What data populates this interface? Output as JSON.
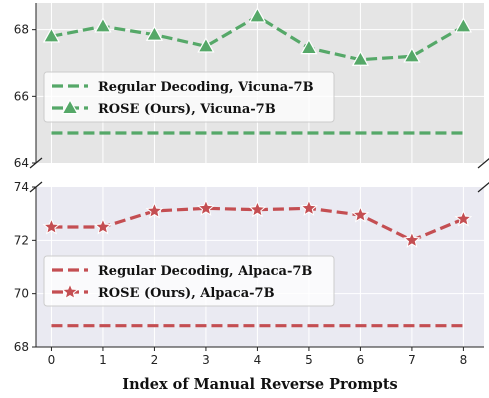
{
  "chart_data": {
    "type": "line",
    "xlabel": "Index of Manual Reverse Prompts",
    "x": [
      0,
      1,
      2,
      3,
      4,
      5,
      6,
      7,
      8
    ],
    "xlim": [
      -0.3,
      8.4
    ],
    "x_ticks": [
      "0",
      "1",
      "2",
      "3",
      "4",
      "5",
      "6",
      "7",
      "8"
    ],
    "broken_y_axis": true,
    "panels": [
      {
        "id": "top",
        "background": "#e5e5e5",
        "ylim": [
          64,
          68.8
        ],
        "y_ticks": [
          "64",
          "66",
          "68"
        ],
        "legend_location": "center-left",
        "series": [
          {
            "name": "Regular Decoding, Vicuna-7B",
            "style": "dashed",
            "marker": "none",
            "color": "#55a868",
            "values": [
              64.9,
              64.9,
              64.9,
              64.9,
              64.9,
              64.9,
              64.9,
              64.9,
              64.9
            ]
          },
          {
            "name": "ROSE (Ours), Vicuna-7B",
            "style": "dashed",
            "marker": "triangle",
            "color": "#55a868",
            "values": [
              67.8,
              68.1,
              67.85,
              67.5,
              68.4,
              67.45,
              67.1,
              67.2,
              68.1
            ]
          }
        ]
      },
      {
        "id": "bottom",
        "background": "#eaeaf2",
        "ylim": [
          68,
          74
        ],
        "y_ticks": [
          "68",
          "70",
          "72",
          "74"
        ],
        "legend_location": "center-left",
        "series": [
          {
            "name": "Regular Decoding, Alpaca-7B",
            "style": "dashed",
            "marker": "none",
            "color": "#c44e52",
            "values": [
              68.8,
              68.8,
              68.8,
              68.8,
              68.8,
              68.8,
              68.8,
              68.8,
              68.8
            ]
          },
          {
            "name": "ROSE (Ours), Alpaca-7B",
            "style": "dashed",
            "marker": "star",
            "color": "#c44e52",
            "values": [
              72.5,
              72.5,
              73.1,
              73.2,
              73.15,
              73.2,
              72.95,
              72.0,
              72.8
            ]
          }
        ]
      }
    ]
  }
}
